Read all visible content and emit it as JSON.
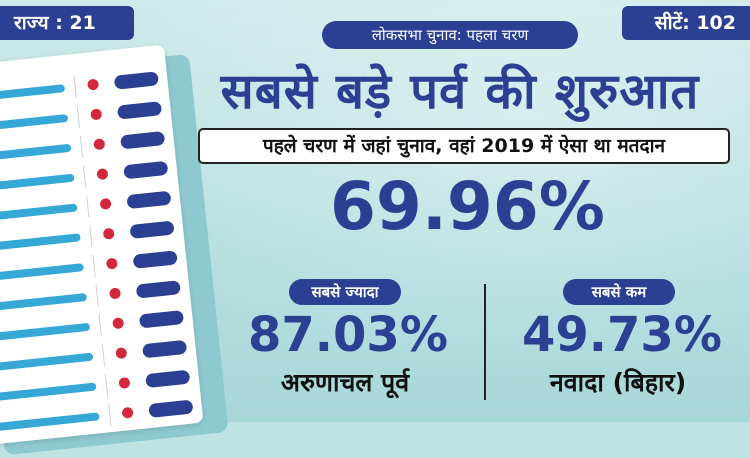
{
  "top_left_tag": "राज्य : 21",
  "top_right_tag": "सीटें: 102",
  "subheading": "लोकसभा चुनाव: पहला चरण",
  "headline": "सबसे बड़े पर्व की शुरुआत",
  "subtitle": "पहले चरण में जहां चुनाव, वहां 2019 में ऐसा था मतदान",
  "overall_turnout": "69.96%",
  "highest": {
    "label": "सबसे ज्यादा",
    "value": "87.03%",
    "place": "अरुणाचल पूर्व"
  },
  "lowest": {
    "label": "सबसे कम",
    "value": "49.73%",
    "place": "नवादा (बिहार)"
  },
  "colors": {
    "accent": "#2b3f93",
    "ballot_dot": "#d3273c",
    "ballot_bar": "#35a8d8",
    "background": "#bfe3e3"
  },
  "illustration": "ballot-unit-icon"
}
